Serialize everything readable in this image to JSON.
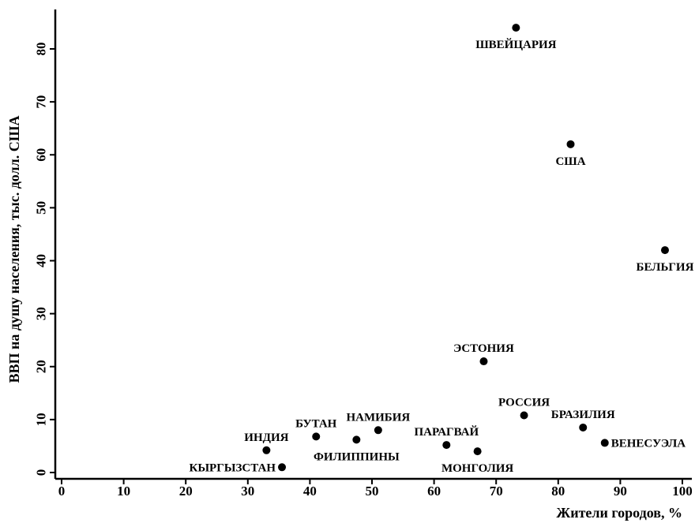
{
  "chart_data": {
    "type": "scatter",
    "xlabel": "Жители городов, %",
    "ylabel": "ВВП на душу населения, тыс. долл. США",
    "xlim": [
      0,
      100
    ],
    "ylim": [
      0,
      85
    ],
    "xticks": [
      0,
      10,
      20,
      30,
      40,
      50,
      60,
      70,
      80,
      90,
      100
    ],
    "yticks": [
      0,
      10,
      20,
      30,
      40,
      50,
      60,
      70,
      80
    ],
    "grid": false,
    "legend": "none",
    "marker_color": "#000000",
    "points": [
      {
        "label": "ШВЕЙЦАРИЯ",
        "x": 73.2,
        "y": 84,
        "pos": "below"
      },
      {
        "label": "США",
        "x": 82,
        "y": 62,
        "pos": "below"
      },
      {
        "label": "БЕЛЬГИЯ",
        "x": 97.2,
        "y": 42,
        "pos": "below"
      },
      {
        "label": "ЭСТОНИЯ",
        "x": 68,
        "y": 21,
        "pos": "above"
      },
      {
        "label": "РОССИЯ",
        "x": 74.5,
        "y": 10.8,
        "pos": "above"
      },
      {
        "label": "БРАЗИЛИЯ",
        "x": 84,
        "y": 8.5,
        "pos": "above"
      },
      {
        "label": "ВЕНЕСУЭЛА",
        "x": 87.5,
        "y": 5.6,
        "pos": "right"
      },
      {
        "label": "ПАРАГВАЙ",
        "x": 62,
        "y": 5.2,
        "pos": "above"
      },
      {
        "label": "МОНГОЛИЯ",
        "x": 67,
        "y": 4,
        "pos": "below"
      },
      {
        "label": "НАМИБИЯ",
        "x": 51,
        "y": 8,
        "pos": "above"
      },
      {
        "label": "ФИЛИППИНЫ",
        "x": 47.5,
        "y": 6.2,
        "pos": "below"
      },
      {
        "label": "БУТАН",
        "x": 41,
        "y": 6.8,
        "pos": "above"
      },
      {
        "label": "ИНДИЯ",
        "x": 33,
        "y": 4.2,
        "pos": "above"
      },
      {
        "label": "КЫРГЫЗСТАН",
        "x": 35.5,
        "y": 1,
        "pos": "left"
      }
    ]
  }
}
